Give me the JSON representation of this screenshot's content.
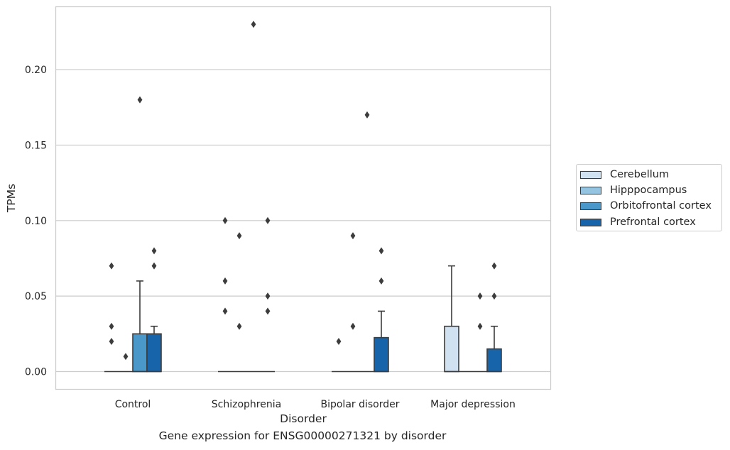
{
  "chart_data": {
    "type": "box",
    "caption": "Gene expression for ENSG00000271321 by disorder",
    "xlabel": "Disorder",
    "ylabel": "TPMs",
    "categories": [
      "Control",
      "Schizophrenia",
      "Bipolar disorder",
      "Major depression"
    ],
    "ylim": [
      -0.0115,
      0.241
    ],
    "yticks": [
      "0.00",
      "0.05",
      "0.10",
      "0.15",
      "0.20"
    ],
    "grid": "horizontal",
    "legend_position": "right",
    "colors": {
      "Cerebellum": "#d0e1f2",
      "Hipppocampus": "#94c4df",
      "Orbitofrontal cortex": "#4a98c9",
      "Prefrontal cortex": "#1764ab",
      "stroke": "#3c3c3c",
      "grid": "#cccccc"
    },
    "series": [
      {
        "name": "Cerebellum",
        "boxes": [
          {
            "q1": 0,
            "median": 0,
            "q3": 0,
            "whisker_low": 0,
            "whisker_high": 0,
            "outliers": [
              0.07,
              0.03,
              0.02
            ]
          },
          {
            "q1": 0,
            "median": 0,
            "q3": 0,
            "whisker_low": 0,
            "whisker_high": 0,
            "outliers": [
              0.1,
              0.06,
              0.04
            ]
          },
          {
            "q1": 0,
            "median": 0,
            "q3": 0,
            "whisker_low": 0,
            "whisker_high": 0,
            "outliers": [
              0.02
            ]
          },
          {
            "q1": 0,
            "median": 0,
            "q3": 0.03,
            "whisker_low": 0,
            "whisker_high": 0.07,
            "outliers": []
          }
        ]
      },
      {
        "name": "Hipppocampus",
        "boxes": [
          {
            "q1": 0,
            "median": 0,
            "q3": 0,
            "whisker_low": 0,
            "whisker_high": 0,
            "outliers": [
              0.01
            ]
          },
          {
            "q1": 0,
            "median": 0,
            "q3": 0,
            "whisker_low": 0,
            "whisker_high": 0,
            "outliers": [
              0.09,
              0.03
            ]
          },
          {
            "q1": 0,
            "median": 0,
            "q3": 0,
            "whisker_low": 0,
            "whisker_high": 0,
            "outliers": [
              0.09,
              0.03
            ]
          },
          {
            "q1": 0,
            "median": 0,
            "q3": 0,
            "whisker_low": 0,
            "whisker_high": 0,
            "outliers": []
          }
        ]
      },
      {
        "name": "Orbitofrontal cortex",
        "boxes": [
          {
            "q1": 0,
            "median": 0,
            "q3": 0.025,
            "whisker_low": 0,
            "whisker_high": 0.06,
            "outliers": [
              0.18
            ]
          },
          {
            "q1": 0,
            "median": 0,
            "q3": 0,
            "whisker_low": 0,
            "whisker_high": 0,
            "outliers": [
              0.23
            ]
          },
          {
            "q1": 0,
            "median": 0,
            "q3": 0,
            "whisker_low": 0,
            "whisker_high": 0,
            "outliers": [
              0.17
            ]
          },
          {
            "q1": 0,
            "median": 0,
            "q3": 0,
            "whisker_low": 0,
            "whisker_high": 0,
            "outliers": [
              0.05,
              0.03
            ]
          }
        ]
      },
      {
        "name": "Prefrontal cortex",
        "boxes": [
          {
            "q1": 0,
            "median": 0,
            "q3": 0.025,
            "whisker_low": 0,
            "whisker_high": 0.03,
            "outliers": [
              0.08,
              0.07
            ]
          },
          {
            "q1": 0,
            "median": 0,
            "q3": 0,
            "whisker_low": 0,
            "whisker_high": 0,
            "outliers": [
              0.1,
              0.05,
              0.04
            ]
          },
          {
            "q1": 0,
            "median": 0,
            "q3": 0.0225,
            "whisker_low": 0,
            "whisker_high": 0.04,
            "outliers": [
              0.08,
              0.06
            ]
          },
          {
            "q1": 0,
            "median": 0,
            "q3": 0.015,
            "whisker_low": 0,
            "whisker_high": 0.03,
            "outliers": [
              0.07,
              0.05
            ]
          }
        ]
      }
    ]
  }
}
